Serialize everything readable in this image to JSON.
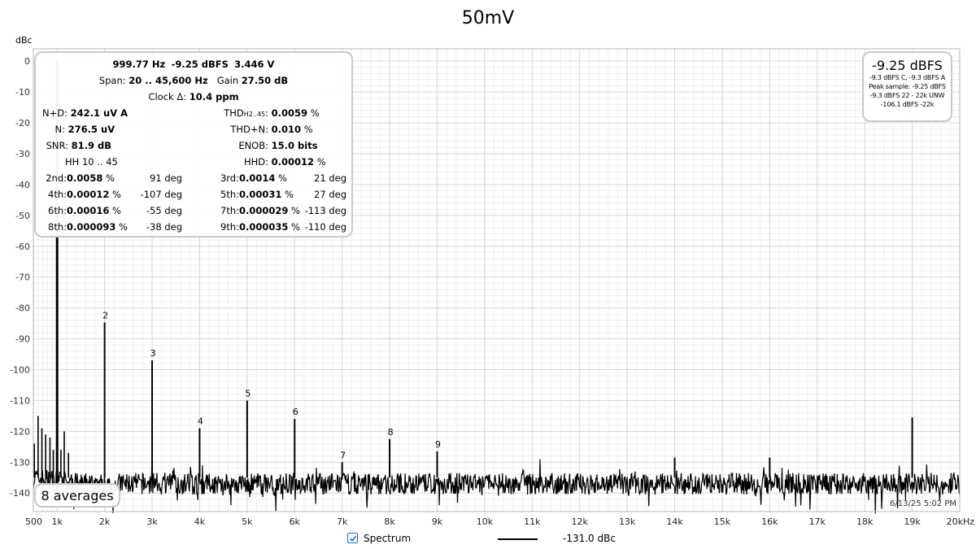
{
  "chart_data": {
    "type": "line",
    "title": "50mV",
    "ylabel": "dBc",
    "xlabel": "",
    "x_scale": "linear",
    "xlim": [
      500,
      20000
    ],
    "ylim": [
      -146,
      4
    ],
    "grid": true,
    "x_ticks": [
      {
        "value": 500,
        "label": "500"
      },
      {
        "value": 1000,
        "label": "1k"
      },
      {
        "value": 2000,
        "label": "2k"
      },
      {
        "value": 3000,
        "label": "3k"
      },
      {
        "value": 4000,
        "label": "4k"
      },
      {
        "value": 5000,
        "label": "5k"
      },
      {
        "value": 6000,
        "label": "6k"
      },
      {
        "value": 7000,
        "label": "7k"
      },
      {
        "value": 8000,
        "label": "8k"
      },
      {
        "value": 9000,
        "label": "9k"
      },
      {
        "value": 10000,
        "label": "10k"
      },
      {
        "value": 11000,
        "label": "11k"
      },
      {
        "value": 12000,
        "label": "12k"
      },
      {
        "value": 13000,
        "label": "13k"
      },
      {
        "value": 14000,
        "label": "14k"
      },
      {
        "value": 15000,
        "label": "15k"
      },
      {
        "value": 16000,
        "label": "16k"
      },
      {
        "value": 17000,
        "label": "17k"
      },
      {
        "value": 18000,
        "label": "18k"
      },
      {
        "value": 19000,
        "label": "19k"
      },
      {
        "value": 20000,
        "label": "20kHz"
      }
    ],
    "y_ticks": [
      0,
      -10,
      -20,
      -30,
      -40,
      -50,
      -60,
      -70,
      -80,
      -90,
      -100,
      -110,
      -120,
      -130,
      -140
    ],
    "series": [
      {
        "name": "Spectrum",
        "noise_floor": -137,
        "peaks": [
          {
            "x": 1000,
            "y": 0,
            "label": ""
          },
          {
            "x": 2000,
            "y": -84.7,
            "label": "2"
          },
          {
            "x": 3000,
            "y": -97,
            "label": "3"
          },
          {
            "x": 4000,
            "y": -119,
            "label": "4"
          },
          {
            "x": 5000,
            "y": -110,
            "label": "5"
          },
          {
            "x": 6000,
            "y": -116,
            "label": "6"
          },
          {
            "x": 7000,
            "y": -130,
            "label": "7"
          },
          {
            "x": 8000,
            "y": -122.5,
            "label": "8"
          },
          {
            "x": 9000,
            "y": -126.5,
            "label": "9"
          },
          {
            "x": 14000,
            "y": -128.5,
            "label": ""
          },
          {
            "x": 16000,
            "y": -128.5,
            "label": ""
          },
          {
            "x": 19000,
            "y": -115.5,
            "label": ""
          }
        ],
        "low_freq_spurs": [
          {
            "x": 520,
            "y": -124
          },
          {
            "x": 600,
            "y": -115
          },
          {
            "x": 680,
            "y": -119
          },
          {
            "x": 760,
            "y": -121
          },
          {
            "x": 850,
            "y": -122
          },
          {
            "x": 920,
            "y": -126
          },
          {
            "x": 1080,
            "y": -126
          },
          {
            "x": 1150,
            "y": -120
          },
          {
            "x": 1240,
            "y": -127
          }
        ]
      }
    ]
  },
  "stats": {
    "line1": [
      "999.77 Hz",
      "-9.25 dBFS",
      "3.446 V"
    ],
    "span_label": "Span:",
    "span_value": "20 .. 45,600 Hz",
    "gain_label": "Gain",
    "gain_value": "27.50 dB",
    "clock_label": "Clock Δ:",
    "clock_value": "10.4 ppm",
    "nd_label": "N+D:",
    "nd_value": "242.1 uV A",
    "thd_label": "THD",
    "thd_sub": "H2..45",
    "thd_colon": ":",
    "thd_value": "0.0059",
    "n_label": "N:",
    "n_value": "276.5 uV",
    "thdn_label": "THD+N:",
    "thdn_value": "0.010",
    "snr_label": "SNR:",
    "snr_value": "81.9 dB",
    "enob_label": "ENOB:",
    "enob_value": "15.0 bits",
    "hh_label": "HH 10 .. 45",
    "hhd_label": "HHD:",
    "hhd_value": "0.00012",
    "pct": "%",
    "harmonics": [
      {
        "label": "2nd:",
        "value": "0.0058",
        "phase": "91 deg"
      },
      {
        "label": "3rd:",
        "value": "0.0014",
        "phase": "21 deg"
      },
      {
        "label": "4th:",
        "value": "0.00012",
        "phase": "-107 deg"
      },
      {
        "label": "5th:",
        "value": "0.00031",
        "phase": "27 deg"
      },
      {
        "label": "6th:",
        "value": "0.00016",
        "phase": "-55 deg"
      },
      {
        "label": "7th:",
        "value": "0.000029",
        "phase": "-113 deg"
      },
      {
        "label": "8th:",
        "value": "0.000093",
        "phase": "-38 deg"
      },
      {
        "label": "9th:",
        "value": "0.000035",
        "phase": "-110 deg"
      }
    ]
  },
  "level": {
    "main": "-9.25 dBFS",
    "lines": [
      "-9.3 dBFS C, -9.3 dBFS A",
      "Peak sample: -9.25 dBFS",
      "-9.3 dBFS 22 - 22k UNW",
      "-106.1 dBFS -22k"
    ]
  },
  "averages": "8 averages",
  "timestamp": "6/13/25 5:02 PM",
  "legend": {
    "name": "Spectrum",
    "value": "-131.0 dBc",
    "checked": true
  }
}
